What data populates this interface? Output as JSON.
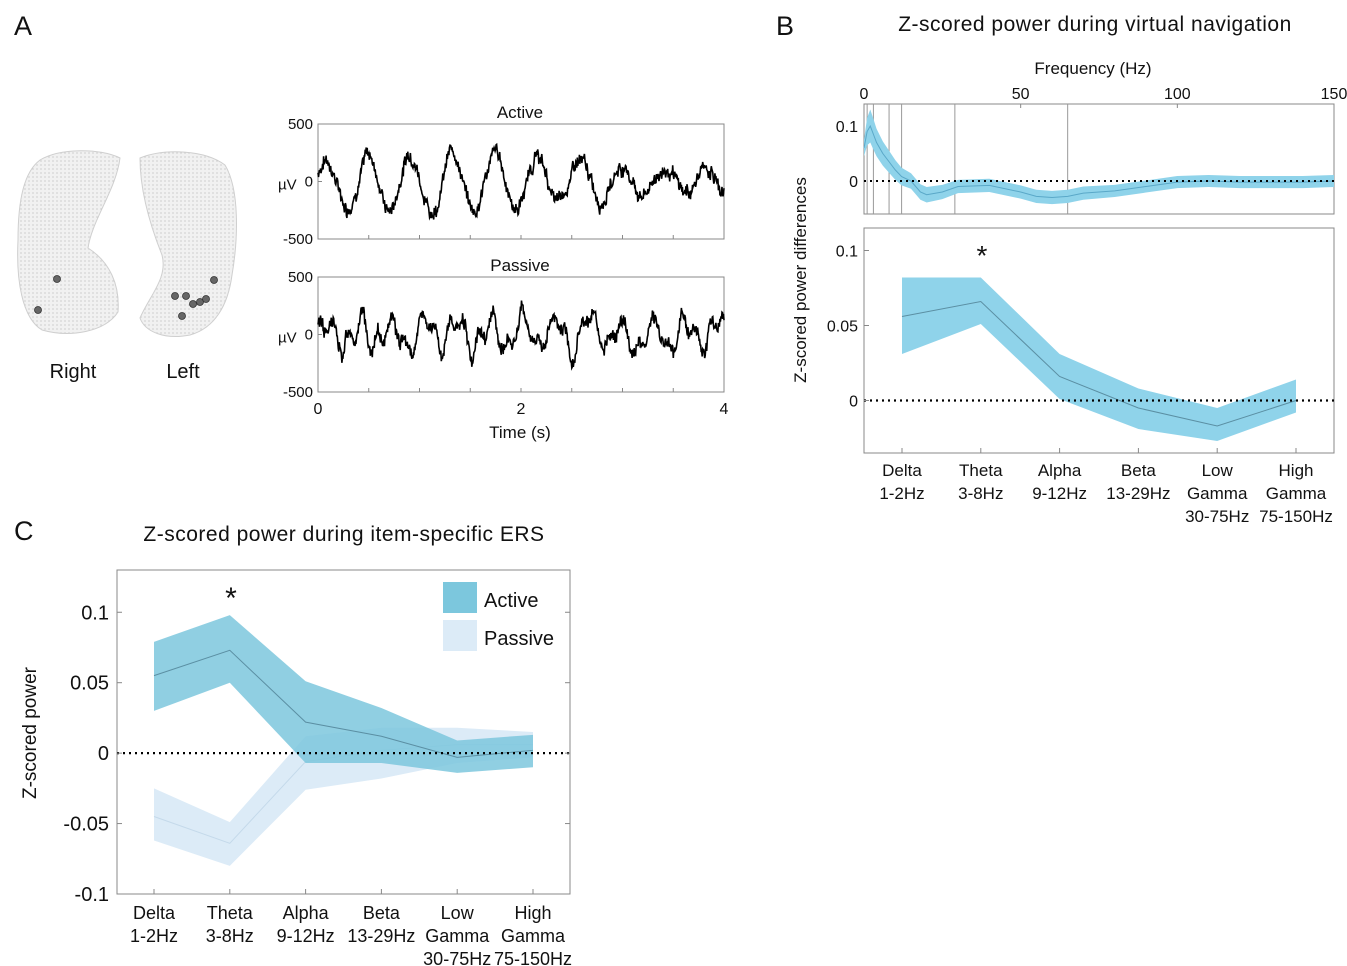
{
  "panels": {
    "a": {
      "letter": "A",
      "brain": {
        "right_label": "Right",
        "left_label": "Left"
      },
      "traces": {
        "active_title": "Active",
        "passive_title": "Passive",
        "unit_label": "µV",
        "xlabel": "Time (s)",
        "xticks": [
          0,
          2,
          4
        ],
        "yticks": [
          -500,
          0,
          500
        ],
        "ylim": [
          -500,
          500
        ],
        "xlim": [
          0,
          4
        ]
      }
    },
    "b": {
      "letter": "B",
      "title": "Z-scored power during virtual navigation",
      "top_xlabel": "Frequency (Hz)",
      "ylabel": "Z-scored power differences",
      "significance_marker": "*"
    },
    "c": {
      "letter": "C",
      "title": "Z-scored power during item-specific ERS",
      "ylabel": "Z-scored power",
      "significance_marker": "*"
    }
  },
  "chart_data": [
    {
      "id": "a-active",
      "type": "line",
      "title": "Active",
      "ylabel": "µV",
      "xlabel": "",
      "xlim": [
        0,
        4
      ],
      "ylim": [
        -500,
        500
      ],
      "description_of_signal": "oscillatory",
      "seed": 7
    },
    {
      "id": "a-passive",
      "type": "line",
      "title": "Passive",
      "ylabel": "µV",
      "xlabel": "Time (s)",
      "xlim": [
        0,
        4
      ],
      "ylim": [
        -500,
        500
      ],
      "seed": 13
    },
    {
      "id": "b-spectrum",
      "type": "area",
      "xlabel": "Frequency (Hz)",
      "xlim": [
        0,
        150
      ],
      "xticks": [
        0,
        50,
        100,
        150
      ],
      "yticks": [
        0,
        0.1
      ],
      "ylim": [
        -0.06,
        0.14
      ],
      "band_edges": [
        1,
        3,
        8,
        12,
        29,
        65
      ],
      "x": [
        0,
        1,
        2,
        3,
        4,
        6,
        8,
        10,
        12,
        15,
        18,
        20,
        25,
        30,
        40,
        50,
        55,
        60,
        65,
        70,
        80,
        90,
        100,
        110,
        120,
        130,
        140,
        150
      ],
      "mean": [
        0.06,
        0.09,
        0.1,
        0.085,
        0.07,
        0.05,
        0.035,
        0.02,
        0.008,
        0.0,
        -0.02,
        -0.025,
        -0.02,
        -0.01,
        -0.008,
        -0.02,
        -0.028,
        -0.03,
        -0.028,
        -0.022,
        -0.018,
        -0.01,
        -0.002,
        0.0,
        -0.002,
        -0.002,
        -0.002,
        0.0
      ],
      "half_width": [
        0.015,
        0.025,
        0.03,
        0.028,
        0.025,
        0.022,
        0.02,
        0.018,
        0.016,
        0.014,
        0.014,
        0.014,
        0.013,
        0.012,
        0.012,
        0.012,
        0.012,
        0.012,
        0.012,
        0.012,
        0.011,
        0.011,
        0.011,
        0.011,
        0.011,
        0.011,
        0.011,
        0.011
      ]
    },
    {
      "id": "b-bands",
      "type": "area",
      "categories": [
        "Delta\n1-2Hz",
        "Theta\n3-8Hz",
        "Alpha\n9-12Hz",
        "Beta\n13-29Hz",
        "Low\nGamma\n30-75Hz",
        "High\nGamma\n75-150Hz"
      ],
      "yticks": [
        0,
        0.05,
        0.1
      ],
      "ylim": [
        -0.035,
        0.115
      ],
      "mean": [
        0.056,
        0.066,
        0.016,
        -0.005,
        -0.017,
        0.0
      ],
      "upper": [
        0.082,
        0.082,
        0.031,
        0.008,
        -0.005,
        0.014
      ],
      "lower": [
        0.031,
        0.051,
        0.001,
        -0.019,
        -0.027,
        -0.008
      ],
      "significant_index": 1
    },
    {
      "id": "c-bands",
      "type": "area",
      "categories": [
        "Delta\n1-2Hz",
        "Theta\n3-8Hz",
        "Alpha\n9-12Hz",
        "Beta\n13-29Hz",
        "Low\nGamma\n30-75Hz",
        "High\nGamma\n75-150Hz"
      ],
      "yticks": [
        -0.1,
        -0.05,
        0,
        0.05,
        0.1
      ],
      "ylim": [
        -0.1,
        0.13
      ],
      "legend_position": "top-right",
      "significant_index": 1,
      "series": [
        {
          "name": "Active",
          "color": "#7cc7dd",
          "mean": [
            0.055,
            0.073,
            0.022,
            0.012,
            -0.003,
            0.002
          ],
          "upper": [
            0.079,
            0.098,
            0.051,
            0.032,
            0.009,
            0.013
          ],
          "lower": [
            0.03,
            0.05,
            -0.007,
            -0.007,
            -0.014,
            -0.01
          ]
        },
        {
          "name": "Passive",
          "color": "#dcebf7",
          "mean": [
            -0.045,
            -0.064,
            -0.006,
            0.002,
            0.006,
            0.006
          ],
          "upper": [
            -0.025,
            -0.049,
            0.012,
            0.018,
            0.018,
            0.015
          ],
          "lower": [
            -0.062,
            -0.08,
            -0.026,
            -0.018,
            -0.007,
            -0.003
          ]
        }
      ]
    }
  ]
}
